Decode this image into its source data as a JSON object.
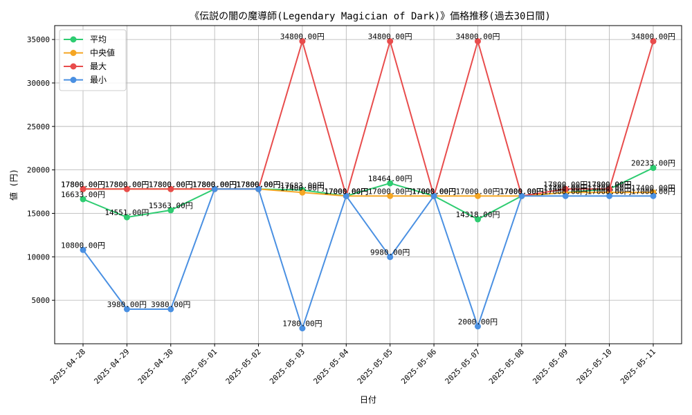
{
  "chart_data": {
    "type": "line",
    "title": "《伝説の闇の魔導師(Legendary Magician of Dark)》価格推移(過去30日間)",
    "xlabel": "日付",
    "ylabel": "値 (円)",
    "categories": [
      "2025-04-28",
      "2025-04-29",
      "2025-04-30",
      "2025-05-01",
      "2025-05-02",
      "2025-05-03",
      "2025-05-04",
      "2025-05-05",
      "2025-05-06",
      "2025-05-07",
      "2025-05-08",
      "2025-05-09",
      "2025-05-10",
      "2025-05-11"
    ],
    "ylim": [
      0,
      36600
    ],
    "yticks": [
      5000,
      10000,
      15000,
      20000,
      25000,
      30000,
      35000
    ],
    "grid": true,
    "legend_position": "top-left",
    "series": [
      {
        "name": "平均",
        "color": "#2ecc71",
        "values": [
          16633,
          14551,
          15363,
          17800,
          17800,
          17683,
          17000,
          18464,
          17000,
          14318,
          17000,
          17400,
          17800,
          20233
        ],
        "labels": [
          "16633.00円",
          "14551.00円",
          "15363.00円",
          "17800.00円",
          "17800.00円",
          "17683.00円",
          "17000.00円",
          "18464.00円",
          "17000.00円",
          "14318.00円",
          "17000.00円",
          "17400.00円",
          "17800.00円",
          "20233.00円"
        ]
      },
      {
        "name": "中央値",
        "color": "#f5a623",
        "values": [
          17800,
          17800,
          17800,
          17800,
          17800,
          17400,
          17000,
          17000,
          17000,
          17000,
          17000,
          17400,
          17400,
          17400
        ],
        "labels": [
          "17800.00円",
          "17800.00円",
          "17800.00円",
          "17800.00円",
          "17800.00円",
          "17400.00円",
          "17000.00円",
          "17000.00円",
          "17000.00円",
          "17000.00円",
          "17000.00円",
          "17400.00円",
          "17400.00円",
          "17400.00円"
        ]
      },
      {
        "name": "最大",
        "color": "#e84c4c",
        "values": [
          17800,
          17800,
          17800,
          17800,
          17800,
          34800,
          17000,
          34800,
          17000,
          34800,
          17000,
          17800,
          17800,
          34800
        ],
        "labels": [
          "17800.00円",
          "17800.00円",
          "17800.00円",
          "17800.00円",
          "17800.00円",
          "34800.00円",
          "17000.00円",
          "34800.00円",
          "17000.00円",
          "34800.00円",
          "17000.00円",
          "17800.00円",
          "17800.00円",
          "34800.00円"
        ]
      },
      {
        "name": "最小",
        "color": "#4a90e2",
        "values": [
          10800,
          3980,
          3980,
          17800,
          17800,
          1780,
          17000,
          9980,
          17000,
          2000,
          17000,
          17000,
          17000,
          17000
        ],
        "labels": [
          "10800.00円",
          "3980.00円",
          "3980.00円",
          "17800.00円",
          "17800.00円",
          "1780.00円",
          "17000.00円",
          "9980.00円",
          "17000.00円",
          "2000.00円",
          "17000.00円",
          "17000.00円",
          "17000.00円",
          "17000.00円"
        ]
      }
    ]
  }
}
